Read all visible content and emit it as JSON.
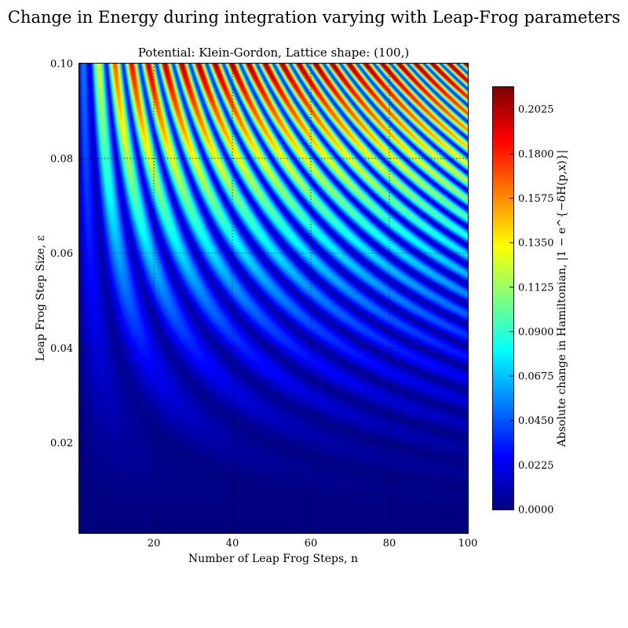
{
  "figure": {
    "suptitle": "Change in Energy during integration varying with Leap-Frog parameters"
  },
  "chart_data": {
    "type": "heatmap",
    "title": "Potential: Klein-Gordon, Lattice shape: (100,)",
    "xlabel": "Number of Leap Frog Steps, n",
    "ylabel": "Leap Frog Step Size, ε",
    "xlim": [
      1,
      100
    ],
    "ylim": [
      0.001,
      0.1
    ],
    "xticks": [
      20,
      40,
      60,
      80,
      100
    ],
    "yticks": [
      0.02,
      0.04,
      0.06,
      0.08,
      0.1
    ],
    "xtick_labels": [
      "20",
      "40",
      "60",
      "80",
      "100"
    ],
    "ytick_labels": [
      "0.02",
      "0.04",
      "0.06",
      "0.08",
      "0.10"
    ],
    "grid": true,
    "colormap": "jet",
    "colorbar": {
      "label": "Absolute change in Hamiltonian, |1 − e^{−δH(p,x)}|",
      "range": [
        0,
        0.2137
      ],
      "ticks": [
        0.0,
        0.0225,
        0.045,
        0.0675,
        0.09,
        0.1125,
        0.135,
        0.1575,
        0.18,
        0.2025
      ],
      "tick_labels": [
        "0.0000",
        "0.0225",
        "0.0450",
        "0.0675",
        "0.0900",
        "0.1125",
        "0.1350",
        "0.1575",
        "0.1800",
        "0.2025"
      ]
    },
    "field": {
      "description_model": "oscillatory bands: magnitude grows with step size, bands with period shrinking as step size grows",
      "amplitude_at_max_eps": 0.21,
      "amplitude_exponent": 2.0,
      "band_frequency": 1.05,
      "peak_points": [
        {
          "n": 8,
          "eps": 0.098,
          "value": 0.2
        },
        {
          "n": 36,
          "eps": 0.098,
          "value": 0.21
        },
        {
          "n": 66,
          "eps": 0.098,
          "value": 0.18
        }
      ]
    },
    "colors": {
      "jet_stops": [
        "#00007f",
        "#0000ff",
        "#007fff",
        "#00ffff",
        "#7fff7f",
        "#ffff00",
        "#ff7f00",
        "#ff0000",
        "#7f0000"
      ]
    }
  }
}
